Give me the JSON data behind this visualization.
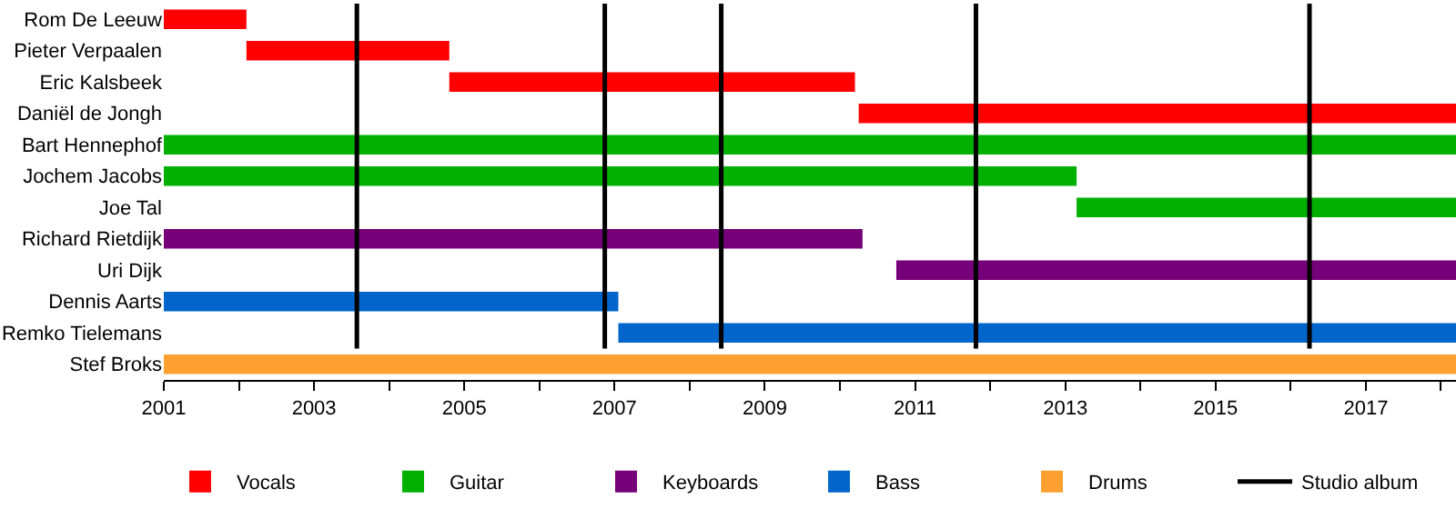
{
  "chart_data": {
    "type": "bar",
    "orientation": "horizontal",
    "categories": [
      "Rom De Leeuw",
      "Pieter Verpaalen",
      "Eric Kalsbeek",
      "Daniël de Jongh",
      "Bart Hennephof",
      "Jochem Jacobs",
      "Joe Tal",
      "Richard Rietdijk",
      "Uri Dijk",
      "Dennis Aarts",
      "Remko Tielemans",
      "Stef Broks"
    ],
    "series": [
      {
        "name": "Vocals",
        "color": "#ff0000",
        "base": [
          2001,
          2002.1,
          2004.8,
          2010.25,
          null,
          null,
          null,
          null,
          null,
          null,
          null,
          null
        ],
        "values": [
          1.1,
          2.7,
          5.4,
          7.95,
          null,
          null,
          null,
          null,
          null,
          null,
          null,
          null
        ]
      },
      {
        "name": "Guitar",
        "color": "#00b000",
        "base": [
          null,
          null,
          null,
          null,
          2001,
          2001,
          2013.15,
          null,
          null,
          null,
          null,
          null
        ],
        "values": [
          null,
          null,
          null,
          null,
          17.2,
          12.15,
          5.05,
          null,
          null,
          null,
          null,
          null
        ]
      },
      {
        "name": "Keyboards",
        "color": "#75007a",
        "base": [
          null,
          null,
          null,
          null,
          null,
          null,
          null,
          2001,
          2010.75,
          null,
          null,
          null
        ],
        "values": [
          null,
          null,
          null,
          null,
          null,
          null,
          null,
          9.3,
          7.45,
          null,
          null,
          null
        ]
      },
      {
        "name": "Bass",
        "color": "#0066cc",
        "base": [
          null,
          null,
          null,
          null,
          null,
          null,
          null,
          null,
          null,
          2001,
          2007.05,
          null
        ],
        "values": [
          null,
          null,
          null,
          null,
          null,
          null,
          null,
          null,
          null,
          6.05,
          11.15,
          null
        ]
      },
      {
        "name": "Drums",
        "color": "#ffa030",
        "base": [
          null,
          null,
          null,
          null,
          null,
          null,
          null,
          null,
          null,
          null,
          null,
          2001
        ],
        "values": [
          null,
          null,
          null,
          null,
          null,
          null,
          null,
          null,
          null,
          null,
          null,
          17.2
        ]
      }
    ],
    "ref_lines": [
      {
        "axis": "x",
        "value": 2003.57,
        "label": "Studio album",
        "color": "#000000"
      },
      {
        "axis": "x",
        "value": 2006.87,
        "color": "#000000"
      },
      {
        "axis": "x",
        "value": 2008.42,
        "color": "#000000"
      },
      {
        "axis": "x",
        "value": 2011.81,
        "color": "#000000"
      },
      {
        "axis": "x",
        "value": 2016.25,
        "color": "#000000"
      }
    ],
    "xlim": [
      2001,
      2018.2
    ],
    "xticks": [
      2001,
      {
        "value": 2002,
        "label": null
      },
      2003,
      {
        "value": 2004,
        "label": null
      },
      2005,
      {
        "value": 2006,
        "label": null
      },
      2007,
      {
        "value": 2008,
        "label": null
      },
      2009,
      {
        "value": 2010,
        "label": null
      },
      2011,
      {
        "value": 2012,
        "label": null
      },
      2013,
      {
        "value": 2014,
        "label": null
      },
      2015,
      {
        "value": 2016,
        "label": null
      },
      2017,
      {
        "value": 2018,
        "label": null
      }
    ],
    "legend": "bottom"
  }
}
